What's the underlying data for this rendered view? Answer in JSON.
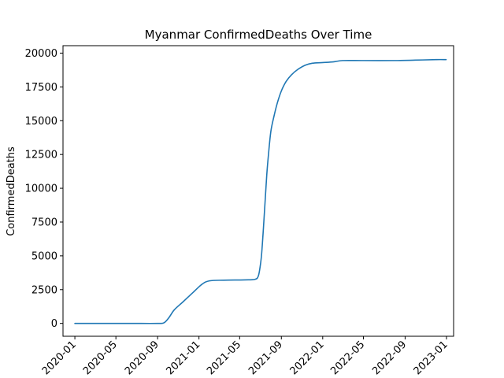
{
  "chart_data": {
    "type": "line",
    "title": "Myanmar  ConfirmedDeaths Over Time",
    "xlabel": "",
    "ylabel": "ConfirmedDeaths",
    "xlim": [
      "2019-11-27",
      "2023-01-22"
    ],
    "ylim": [
      -950,
      20550
    ],
    "grid": false,
    "x_ticks": [
      "2020-01",
      "2020-05",
      "2020-09",
      "2021-01",
      "2021-05",
      "2021-09",
      "2022-01",
      "2022-05",
      "2022-09",
      "2023-01"
    ],
    "y_ticks": [
      0,
      2500,
      5000,
      7500,
      10000,
      12500,
      15000,
      17500,
      20000
    ],
    "y_tick_labels": [
      "0",
      "2500",
      "5000",
      "7500",
      "10000",
      "12500",
      "15000",
      "17500",
      "20000"
    ],
    "color": "#1f77b4",
    "series": [
      {
        "name": "",
        "x": [
          "2020-01-01",
          "2020-03-20",
          "2020-06-15",
          "2020-09-01",
          "2020-09-20",
          "2020-10-05",
          "2020-10-20",
          "2020-11-15",
          "2020-12-15",
          "2021-01-10",
          "2021-02-01",
          "2021-03-15",
          "2021-05-15",
          "2021-06-15",
          "2021-06-25",
          "2021-07-01",
          "2021-07-05",
          "2021-07-10",
          "2021-07-15",
          "2021-07-20",
          "2021-07-25",
          "2021-08-01",
          "2021-08-10",
          "2021-08-20",
          "2021-09-01",
          "2021-09-15",
          "2021-10-01",
          "2021-10-20",
          "2021-11-10",
          "2021-12-01",
          "2022-01-01",
          "2022-02-01",
          "2022-03-01",
          "2022-05-01",
          "2022-08-01",
          "2022-10-01",
          "2022-12-01",
          "2022-12-31"
        ],
        "y": [
          0,
          0,
          0,
          0,
          50,
          450,
          1000,
          1600,
          2300,
          2900,
          3150,
          3200,
          3220,
          3260,
          3500,
          4300,
          5200,
          7000,
          9000,
          11000,
          12500,
          14200,
          15300,
          16300,
          17200,
          17900,
          18400,
          18800,
          19100,
          19250,
          19300,
          19350,
          19450,
          19450,
          19450,
          19480,
          19520,
          19520
        ]
      }
    ]
  }
}
